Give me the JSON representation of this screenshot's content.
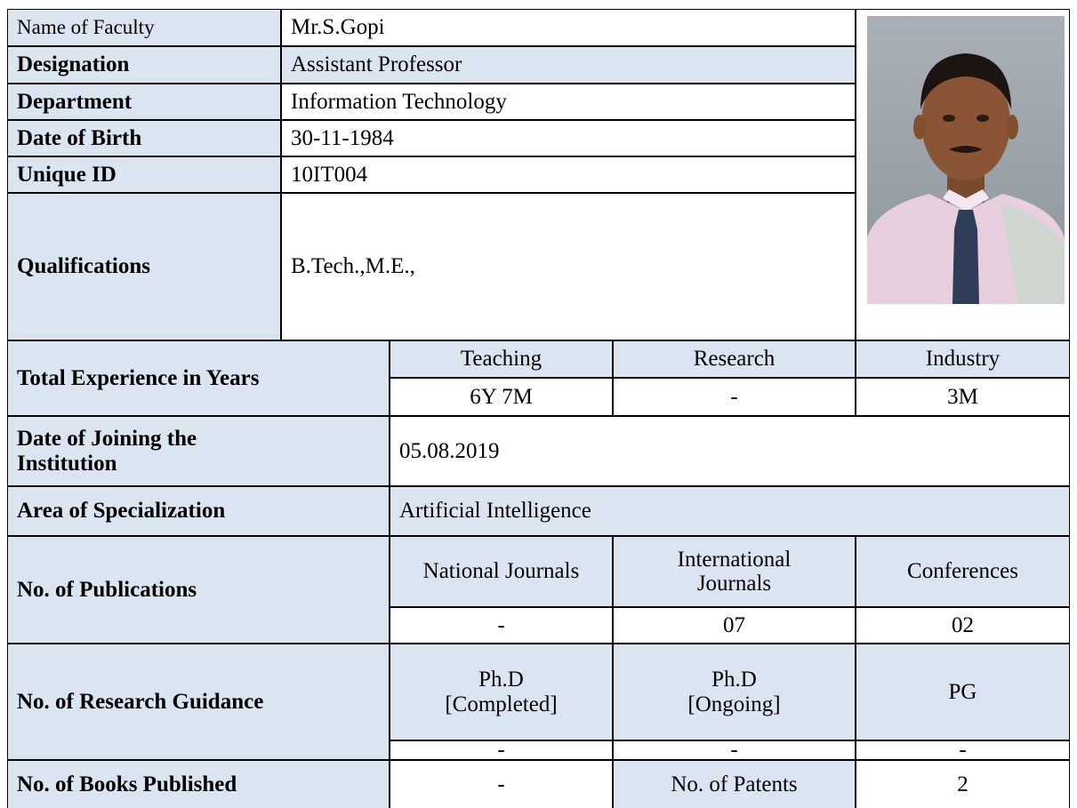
{
  "profile": {
    "name": {
      "label": "Name of Faculty",
      "value": "Mr.S.Gopi"
    },
    "designation": {
      "label": "Designation",
      "value": "Assistant Professor"
    },
    "department": {
      "label": "Department",
      "value": "Information Technology"
    },
    "date_of_birth": {
      "label": "Date of Birth",
      "value": "30-11-1984"
    },
    "unique_id": {
      "label": "Unique ID",
      "value": "10IT004"
    },
    "qualifications": {
      "label": "Qualifications",
      "value": "B.Tech.,M.E.,"
    }
  },
  "experience": {
    "label": "Total Experience in Years",
    "headers": [
      "Teaching",
      "Research",
      "Industry"
    ],
    "values": [
      "6Y 7M",
      "-",
      "3M"
    ]
  },
  "joining": {
    "label": "Date of Joining the Institution",
    "value": "05.08.2019"
  },
  "specialization": {
    "label": "Area of Specialization",
    "value": "Artificial Intelligence"
  },
  "publications": {
    "label": "No. of  Publications",
    "headers": [
      "National Journals",
      "International Journals",
      "Conferences"
    ],
    "values": [
      "-",
      "07",
      "02"
    ]
  },
  "research_guidance": {
    "label": "No. of Research Guidance",
    "headers": [
      "Ph.D [Completed]",
      "Ph.D [Ongoing]",
      "PG"
    ],
    "values": [
      "-",
      "-",
      "-"
    ]
  },
  "books": {
    "label": "No. of Books Published",
    "value": "-",
    "patents_label": "No. of Patents",
    "patents_value": "2"
  }
}
